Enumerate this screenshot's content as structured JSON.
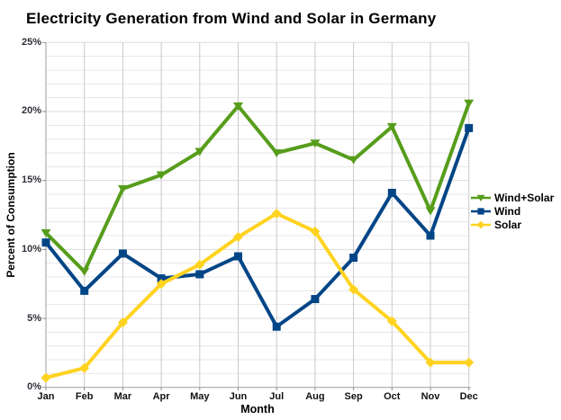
{
  "title": "Electricity Generation from Wind and Solar in Germany",
  "chart_data": {
    "type": "line",
    "title": "Electricity Generation from Wind and Solar in Germany",
    "xlabel": "Month",
    "ylabel": "Percent of Consumption",
    "categories": [
      "Jan",
      "Feb",
      "Mar",
      "Apr",
      "May",
      "Jun",
      "Jul",
      "Aug",
      "Sep",
      "Oct",
      "Nov",
      "Dec"
    ],
    "series": [
      {
        "name": "Wind+Solar",
        "color": "#579d1c",
        "marker": "triangle-down",
        "values": [
          11.2,
          8.4,
          14.4,
          15.4,
          17.1,
          20.4,
          17.0,
          17.7,
          16.5,
          18.9,
          12.8,
          20.6
        ]
      },
      {
        "name": "Wind",
        "color": "#004586",
        "marker": "square",
        "values": [
          10.5,
          7.0,
          9.7,
          7.9,
          8.2,
          9.5,
          4.4,
          6.4,
          9.4,
          14.1,
          11.0,
          18.8
        ]
      },
      {
        "name": "Solar",
        "color": "#ffd320",
        "marker": "diamond",
        "values": [
          0.7,
          1.4,
          4.7,
          7.5,
          8.9,
          10.9,
          12.6,
          11.3,
          7.1,
          4.8,
          1.8,
          1.8
        ]
      }
    ],
    "ylim": [
      0,
      25
    ],
    "y_major_step": 5,
    "y_minor_step": 1,
    "y_tick_labels": [
      "0%",
      "5%",
      "10%",
      "15%",
      "20%",
      "25%"
    ],
    "grid": "major-vertical + minor-horizontal",
    "legend_position": "right",
    "colors": {
      "wind_plus_solar": "#579d1c",
      "wind": "#004586",
      "solar": "#ffd320",
      "vertical_grid": "#c9c9c9",
      "horizontal_grid": "#e3e3e3",
      "axis": "#9b9b9b"
    }
  }
}
